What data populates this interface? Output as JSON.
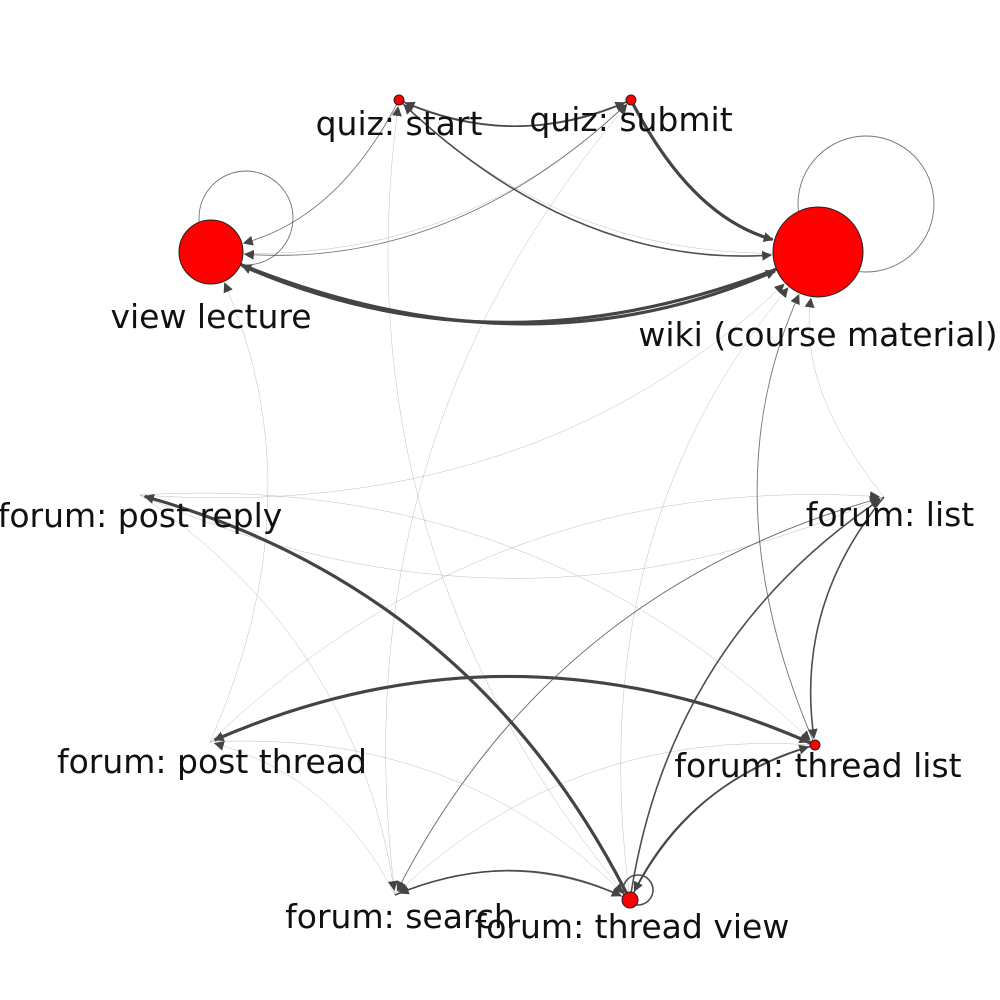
{
  "diagram": {
    "node_fill": "#ff0000",
    "edge_color": "#444444",
    "nodes": [
      {
        "id": "view_lecture",
        "label": "view lecture",
        "size": "large"
      },
      {
        "id": "wiki",
        "label": "wiki (course material)",
        "size": "largest"
      },
      {
        "id": "quiz_start",
        "label": "quiz: start",
        "size": "tiny"
      },
      {
        "id": "quiz_submit",
        "label": "quiz: submit",
        "size": "tiny"
      },
      {
        "id": "forum_post_reply",
        "label": "forum: post reply",
        "size": "none"
      },
      {
        "id": "forum_list",
        "label": "forum: list",
        "size": "none"
      },
      {
        "id": "forum_post_thread",
        "label": "forum: post thread",
        "size": "none"
      },
      {
        "id": "forum_thread_list",
        "label": "forum: thread list",
        "size": "tiny"
      },
      {
        "id": "forum_search",
        "label": "forum: search",
        "size": "none"
      },
      {
        "id": "forum_thread_view",
        "label": "forum: thread view",
        "size": "small"
      }
    ],
    "edges": [
      {
        "from": "wiki",
        "to": "view_lecture",
        "weight": "heavy"
      },
      {
        "from": "view_lecture",
        "to": "wiki",
        "weight": "heavy"
      },
      {
        "from": "quiz_submit",
        "to": "wiki",
        "weight": "heavy"
      },
      {
        "from": "quiz_start",
        "to": "wiki",
        "weight": "medium"
      },
      {
        "from": "quiz_start",
        "to": "quiz_submit",
        "weight": "medium"
      },
      {
        "from": "quiz_submit",
        "to": "quiz_start",
        "weight": "medium"
      },
      {
        "from": "quiz_start",
        "to": "view_lecture",
        "weight": "light"
      },
      {
        "from": "quiz_submit",
        "to": "view_lecture",
        "weight": "light"
      },
      {
        "from": "view_lecture",
        "to": "quiz_submit",
        "weight": "faint"
      },
      {
        "from": "wiki",
        "to": "quiz_start",
        "weight": "faint"
      },
      {
        "from": "forum_thread_list",
        "to": "forum_thread_view",
        "weight": "medium"
      },
      {
        "from": "forum_thread_view",
        "to": "forum_thread_list",
        "weight": "medium"
      },
      {
        "from": "forum_list",
        "to": "forum_thread_list",
        "weight": "medium"
      },
      {
        "from": "forum_thread_view",
        "to": "forum_post_reply",
        "weight": "heavy"
      },
      {
        "from": "forum_thread_list",
        "to": "forum_post_thread",
        "weight": "heavy"
      },
      {
        "from": "forum_search",
        "to": "forum_thread_view",
        "weight": "medium"
      },
      {
        "from": "forum_thread_view",
        "to": "forum_search",
        "weight": "light"
      },
      {
        "from": "forum_thread_view",
        "to": "forum_list",
        "weight": "medium"
      },
      {
        "from": "forum_list",
        "to": "forum_search",
        "weight": "light"
      },
      {
        "from": "forum_thread_list",
        "to": "wiki",
        "weight": "light"
      },
      {
        "from": "forum_list",
        "to": "wiki",
        "weight": "faint"
      },
      {
        "from": "forum_thread_view",
        "to": "wiki",
        "weight": "faint"
      },
      {
        "from": "forum_post_thread",
        "to": "forum_thread_list",
        "weight": "faint"
      },
      {
        "from": "forum_post_reply",
        "to": "forum_thread_list",
        "weight": "faint"
      },
      {
        "from": "forum_post_reply",
        "to": "forum_list",
        "weight": "faint"
      },
      {
        "from": "forum_search",
        "to": "forum_post_thread",
        "weight": "faint"
      },
      {
        "from": "forum_post_thread",
        "to": "forum_thread_view",
        "weight": "faint"
      },
      {
        "from": "forum_thread_list",
        "to": "forum_search",
        "weight": "faint"
      },
      {
        "from": "forum_post_reply",
        "to": "wiki",
        "weight": "faint"
      },
      {
        "from": "forum_search",
        "to": "forum_list",
        "weight": "faint"
      },
      {
        "from": "forum_post_thread",
        "to": "forum_list",
        "weight": "faint"
      },
      {
        "from": "forum_post_reply",
        "to": "forum_search",
        "weight": "faint"
      },
      {
        "from": "forum_search",
        "to": "quiz_submit",
        "weight": "faint"
      },
      {
        "from": "forum_thread_view",
        "to": "quiz_start",
        "weight": "faint"
      },
      {
        "from": "forum_post_thread",
        "to": "view_lecture",
        "weight": "faint"
      }
    ],
    "self_loops": [
      {
        "node": "view_lecture",
        "weight": "light"
      },
      {
        "node": "wiki",
        "weight": "light"
      },
      {
        "node": "forum_thread_view",
        "weight": "medium"
      }
    ]
  }
}
